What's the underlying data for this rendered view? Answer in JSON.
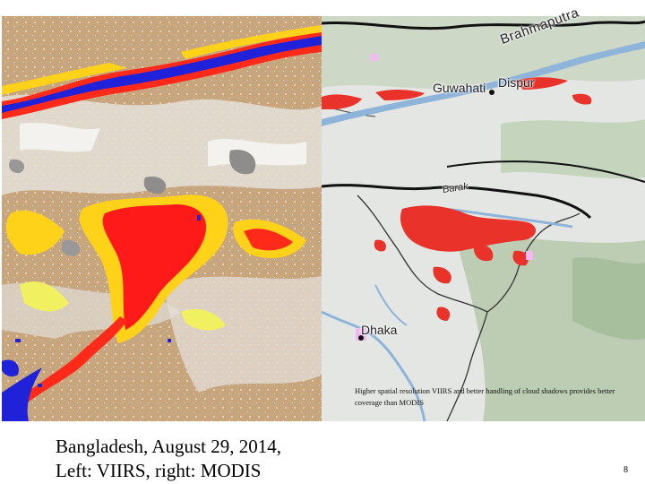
{
  "left_map": {
    "source": "VIIRS",
    "colors": {
      "land": "#c9a57c",
      "cloud": "#e8e4de",
      "cloud_shadow": "#9c9a98",
      "water": "#1f22d8",
      "flood_high": "#ff1a1a",
      "flood_medium": "#ffd21a",
      "flood_low": "#f0f060"
    }
  },
  "right_map": {
    "source": "MODIS",
    "labels": {
      "river_brahmaputra": "Brahmaputra",
      "city_guwahati": "Guwahati",
      "city_dispur": "Dispur",
      "river_barak": "Barak",
      "city_dhaka": "Dhaka"
    },
    "colors": {
      "basemap": "#e4e6e3",
      "vegetation": "#b8c9ae",
      "water": "#8fb4d9",
      "flood": "#e8322a",
      "boundary": "#111111",
      "cloud_mask": "#f2b8f2"
    }
  },
  "note": "Higher spatial resolution VIIRS and better handling of cloud shadows provides better coverage than MODIS",
  "caption": {
    "line1": "Bangladesh, August 29, 2014,",
    "line2": "Left: VIIRS, right: MODIS"
  },
  "page_number": "8"
}
